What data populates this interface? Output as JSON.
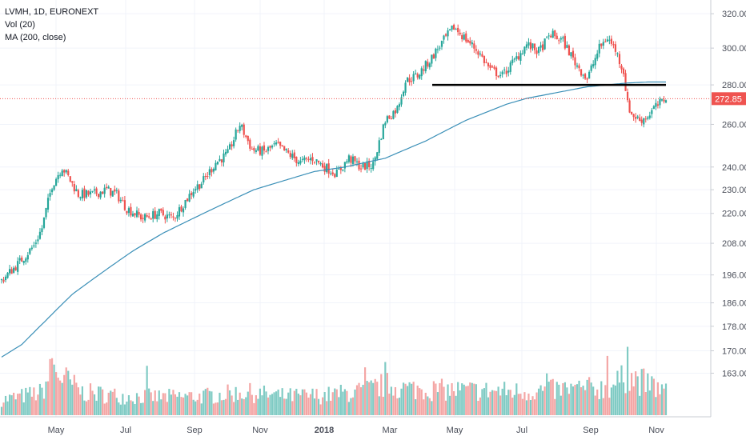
{
  "chart_data": {
    "type": "candlestick",
    "title": "LVMH, 1D, EURONEXT",
    "indicators": [
      "Vol (20)",
      "MA (200, close)"
    ],
    "x_tick_labels": [
      "May",
      "Jul",
      "Sep",
      "Nov",
      "2018",
      "Mar",
      "May",
      "Jul",
      "Sep",
      "Nov"
    ],
    "y_tick_labels": [
      "320.00",
      "300.00",
      "280.00",
      "260.00",
      "240.00",
      "230.00",
      "220.00",
      "208.00",
      "196.00",
      "186.00",
      "178.00",
      "170.00",
      "163.00"
    ],
    "last_price": 272.85,
    "last_price_label": "272.85",
    "ylim": [
      155,
      322
    ],
    "support_level": 280,
    "grid": true,
    "colors": {
      "up": "#26a69a",
      "down": "#ef5350",
      "ma": "#3a8fb7",
      "last_price": "#ef5350",
      "support": "#000000"
    },
    "price_path": [
      [
        0,
        194
      ],
      [
        8,
        200
      ],
      [
        16,
        207
      ],
      [
        20,
        214
      ],
      [
        25,
        232
      ],
      [
        30,
        240
      ],
      [
        38,
        228
      ],
      [
        45,
        228
      ],
      [
        52,
        230
      ],
      [
        57,
        228
      ],
      [
        62,
        222
      ],
      [
        70,
        218
      ],
      [
        78,
        220
      ],
      [
        85,
        218
      ],
      [
        90,
        224
      ],
      [
        95,
        230
      ],
      [
        100,
        234
      ],
      [
        106,
        242
      ],
      [
        112,
        246
      ],
      [
        118,
        260
      ],
      [
        124,
        248
      ],
      [
        130,
        247
      ],
      [
        136,
        250
      ],
      [
        142,
        246
      ],
      [
        148,
        242
      ],
      [
        154,
        244
      ],
      [
        160,
        240
      ],
      [
        166,
        237
      ],
      [
        172,
        244
      ],
      [
        178,
        240
      ],
      [
        184,
        241
      ],
      [
        190,
        262
      ],
      [
        196,
        268
      ],
      [
        200,
        282
      ],
      [
        206,
        285
      ],
      [
        212,
        293
      ],
      [
        218,
        303
      ],
      [
        224,
        312
      ],
      [
        230,
        305
      ],
      [
        236,
        298
      ],
      [
        242,
        288
      ],
      [
        248,
        285
      ],
      [
        254,
        293
      ],
      [
        260,
        302
      ],
      [
        266,
        298
      ],
      [
        272,
        308
      ],
      [
        278,
        304
      ],
      [
        284,
        292
      ],
      [
        290,
        283
      ],
      [
        296,
        300
      ],
      [
        300,
        306
      ],
      [
        304,
        299
      ],
      [
        308,
        287
      ],
      [
        310,
        270
      ],
      [
        312,
        265
      ],
      [
        316,
        262
      ],
      [
        320,
        264
      ],
      [
        323,
        268
      ],
      [
        327,
        271
      ],
      [
        329,
        274
      ]
    ],
    "ma_path": [
      [
        0,
        168
      ],
      [
        10,
        172
      ],
      [
        22,
        180
      ],
      [
        35,
        189
      ],
      [
        50,
        197
      ],
      [
        65,
        205
      ],
      [
        80,
        212
      ],
      [
        95,
        218
      ],
      [
        110,
        224
      ],
      [
        125,
        230
      ],
      [
        140,
        234
      ],
      [
        155,
        238
      ],
      [
        170,
        240
      ],
      [
        180,
        242
      ],
      [
        190,
        244
      ],
      [
        200,
        248
      ],
      [
        210,
        252
      ],
      [
        220,
        257
      ],
      [
        230,
        262
      ],
      [
        240,
        266
      ],
      [
        250,
        270
      ],
      [
        260,
        273
      ],
      [
        270,
        275
      ],
      [
        280,
        277
      ],
      [
        290,
        279
      ],
      [
        300,
        280
      ],
      [
        310,
        281
      ],
      [
        320,
        281.5
      ],
      [
        329,
        281.5
      ]
    ],
    "volume_path": [
      [
        0,
        2
      ],
      [
        20,
        3
      ],
      [
        25,
        6
      ],
      [
        40,
        3
      ],
      [
        60,
        2.5
      ],
      [
        80,
        2.4
      ],
      [
        100,
        2.5
      ],
      [
        120,
        3
      ],
      [
        140,
        2.5
      ],
      [
        160,
        2.6
      ],
      [
        180,
        3.2
      ],
      [
        190,
        4
      ],
      [
        200,
        3.5
      ],
      [
        220,
        3.3
      ],
      [
        240,
        3.2
      ],
      [
        260,
        3.1
      ],
      [
        280,
        3.4
      ],
      [
        300,
        3.6
      ],
      [
        310,
        5
      ],
      [
        320,
        4.2
      ],
      [
        329,
        3
      ]
    ],
    "volume_spikes": [
      [
        25,
        7.5
      ],
      [
        72,
        6.5
      ],
      [
        180,
        6.3
      ],
      [
        190,
        7
      ],
      [
        270,
        5.5
      ],
      [
        300,
        7.8
      ],
      [
        310,
        9
      ],
      [
        320,
        5.5
      ]
    ]
  }
}
